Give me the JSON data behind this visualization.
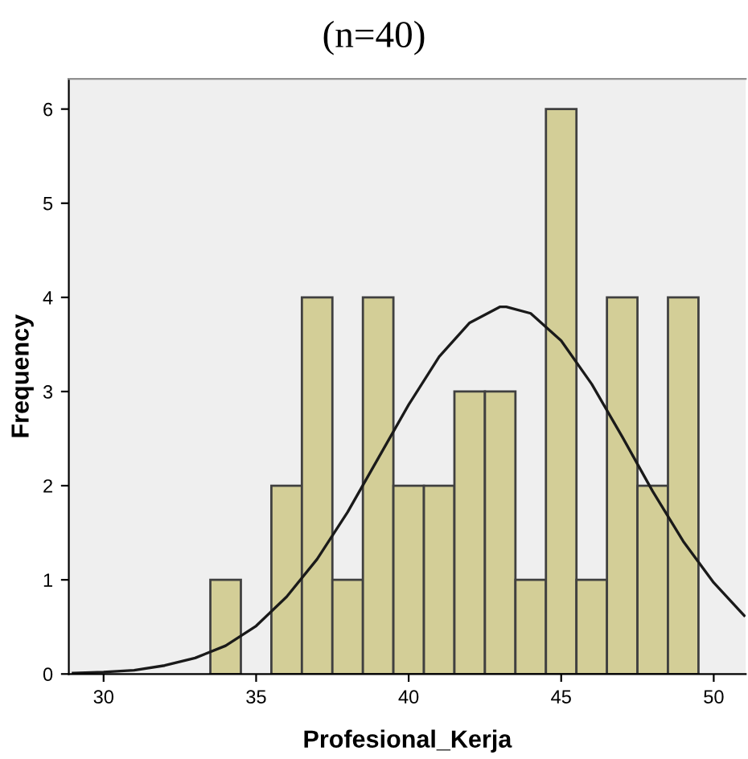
{
  "chart_data": {
    "type": "histogram",
    "title": "(n=40)",
    "xlabel": "Profesional_Kerja",
    "ylabel": "Frequency",
    "bins": [
      33.5,
      34.5,
      35.5,
      36.5,
      37.5,
      38.5,
      39.5,
      40.5,
      41.5,
      42.5,
      43.5,
      44.5,
      45.5,
      46.5,
      47.5,
      48.5,
      49.5
    ],
    "values": [
      1,
      0,
      2,
      4,
      1,
      4,
      2,
      2,
      3,
      3,
      1,
      6,
      1,
      4,
      2,
      4
    ],
    "color": "#d3ce97",
    "series": [
      {
        "type": "line",
        "color": "#1a1a1a",
        "x": [
          29,
          30,
          31,
          32,
          33,
          34,
          35,
          36,
          37,
          38,
          39,
          40,
          41,
          42,
          43,
          43.2,
          44,
          45,
          46,
          47,
          48,
          49,
          50,
          51
        ],
        "values": [
          0.01,
          0.02,
          0.04,
          0.09,
          0.17,
          0.3,
          0.51,
          0.82,
          1.22,
          1.72,
          2.29,
          2.86,
          3.37,
          3.73,
          3.9,
          3.9,
          3.83,
          3.54,
          3.08,
          2.52,
          1.94,
          1.41,
          0.97,
          0.62
        ]
      }
    ],
    "xlim": [
      28.86,
      51.05
    ],
    "ylim": [
      0,
      6.32
    ],
    "xticks": [
      30,
      35,
      40,
      45,
      50
    ],
    "yticks": [
      0,
      1,
      2,
      3,
      4,
      5,
      6
    ],
    "grid": false,
    "legend": false
  }
}
